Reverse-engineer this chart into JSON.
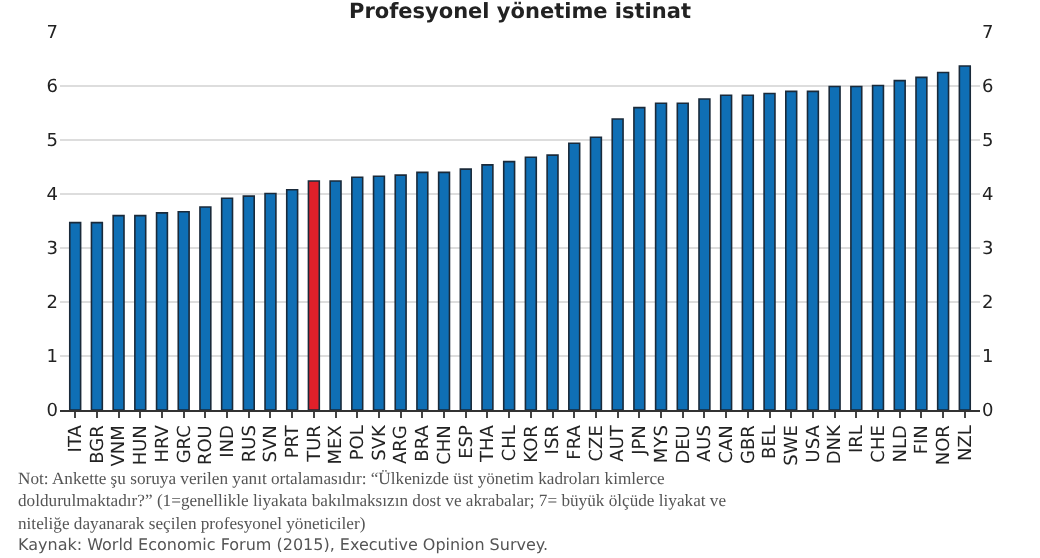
{
  "chart_data": {
    "type": "bar",
    "title": "Profesyonel yönetime istinat",
    "categories": [
      "ITA",
      "BGR",
      "VNM",
      "HUN",
      "HRV",
      "GRC",
      "ROU",
      "IND",
      "RUS",
      "SVN",
      "PRT",
      "TUR",
      "MEX",
      "POL",
      "SVK",
      "ARG",
      "BRA",
      "CHN",
      "ESP",
      "THA",
      "CHL",
      "KOR",
      "ISR",
      "FRA",
      "CZE",
      "AUT",
      "JPN",
      "MYS",
      "DEU",
      "AUS",
      "CAN",
      "GBR",
      "BEL",
      "SWE",
      "USA",
      "DNK",
      "IRL",
      "CHE",
      "NLD",
      "FIN",
      "NOR",
      "NZL"
    ],
    "values": [
      3.47,
      3.47,
      3.6,
      3.6,
      3.65,
      3.67,
      3.76,
      3.92,
      3.96,
      4.01,
      4.08,
      4.24,
      4.24,
      4.31,
      4.33,
      4.35,
      4.4,
      4.4,
      4.46,
      4.54,
      4.6,
      4.68,
      4.72,
      4.94,
      5.05,
      5.39,
      5.6,
      5.68,
      5.68,
      5.76,
      5.83,
      5.83,
      5.86,
      5.9,
      5.9,
      5.99,
      5.99,
      6.01,
      6.1,
      6.16,
      6.25,
      6.37
    ],
    "colors": [
      "#0f6fb5",
      "#0f6fb5",
      "#0f6fb5",
      "#0f6fb5",
      "#0f6fb5",
      "#0f6fb5",
      "#0f6fb5",
      "#0f6fb5",
      "#0f6fb5",
      "#0f6fb5",
      "#0f6fb5",
      "#e0202a",
      "#0f6fb5",
      "#0f6fb5",
      "#0f6fb5",
      "#0f6fb5",
      "#0f6fb5",
      "#0f6fb5",
      "#0f6fb5",
      "#0f6fb5",
      "#0f6fb5",
      "#0f6fb5",
      "#0f6fb5",
      "#0f6fb5",
      "#0f6fb5",
      "#0f6fb5",
      "#0f6fb5",
      "#0f6fb5",
      "#0f6fb5",
      "#0f6fb5",
      "#0f6fb5",
      "#0f6fb5",
      "#0f6fb5",
      "#0f6fb5",
      "#0f6fb5",
      "#0f6fb5",
      "#0f6fb5",
      "#0f6fb5",
      "#0f6fb5",
      "#0f6fb5",
      "#0f6fb5",
      "#0f6fb5"
    ],
    "ylim": [
      0,
      7
    ],
    "yticks": [
      0,
      1,
      2,
      3,
      4,
      5,
      6,
      7
    ],
    "y2lim": [
      0,
      7
    ],
    "y2ticks": [
      0,
      1,
      2,
      3,
      4,
      5,
      6,
      7
    ],
    "grid": "y",
    "annotations": [
      "Not: Ankette şu soruya verilen yanıt ortalamasıdır: “Ülkenizde üst yönetim kadroları kimlerce doldurulmaktadır?” (1=genellikle liyakata bakılmaksızın dost ve akrabalar; 7= büyük ölçüde liyakat ve niteliğe dayanarak seçilen profesyonel yöneticiler)",
      "Kaynak: World Economic Forum (2015), Executive Opinion Survey."
    ]
  }
}
